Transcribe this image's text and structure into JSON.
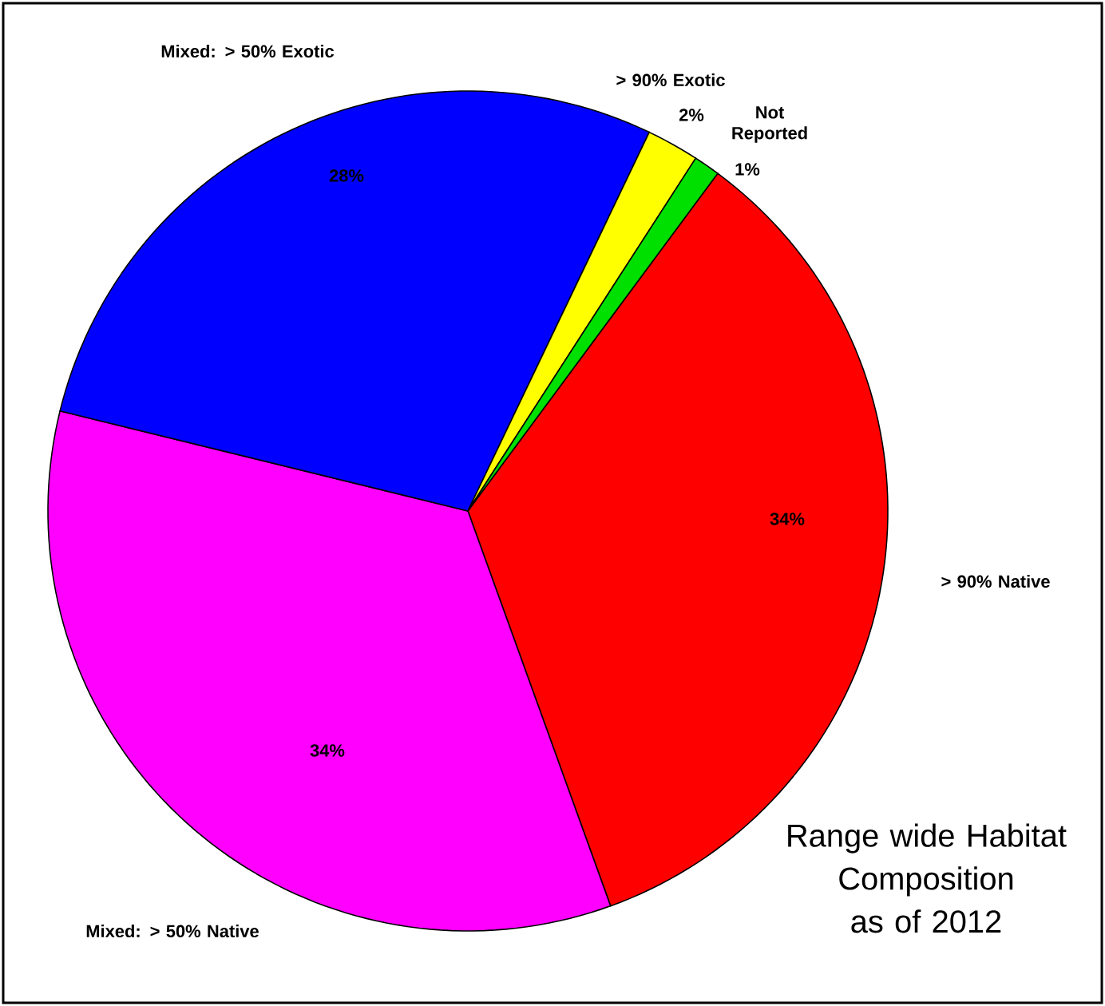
{
  "chart_data": {
    "type": "pie",
    "title": "Range wide Habitat Composition as of 2012",
    "categories": [
      "> 90% Native",
      "Mixed: > 50% Native",
      "Mixed: > 50% Exotic",
      "> 90% Exotic",
      "Not Reported"
    ],
    "values": [
      34,
      34,
      28,
      2,
      1
    ],
    "value_labels": [
      "34%",
      "34%",
      "28%",
      "2%",
      "1%"
    ],
    "colors": [
      "#ff0000",
      "#ff00ff",
      "#0000ff",
      "#ffff00",
      "#00e000"
    ]
  }
}
